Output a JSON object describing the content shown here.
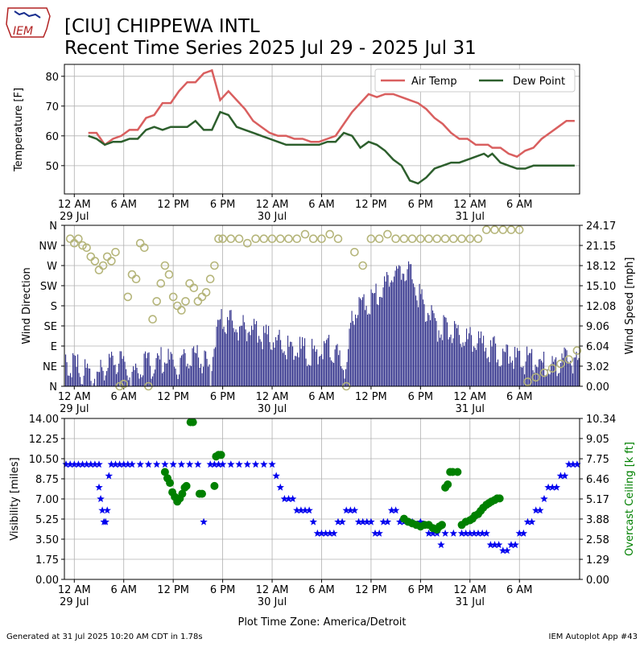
{
  "header": {
    "title_line1": "[CIU] CHIPPEWA INTL",
    "title_line2": "Recent Time Series 2025 Jul 29 - 2025 Jul 31",
    "logo_text": "IEM"
  },
  "footer": {
    "generated": "Generated at 31 Jul 2025 10:20 AM CDT in 1.78s",
    "app": "IEM Autoplot App #43",
    "timezone_label": "Plot Time Zone: America/Detroit"
  },
  "x_axis": {
    "ticks": [
      "12 AM",
      "6 AM",
      "12 PM",
      "6 PM",
      "12 AM",
      "6 AM",
      "12 PM",
      "6 PM",
      "12 AM",
      "6 AM"
    ],
    "tick_hours": [
      0,
      6,
      12,
      18,
      24,
      30,
      36,
      42,
      48,
      54
    ],
    "date_labels": [
      {
        "text": "29 Jul",
        "hour": 0
      },
      {
        "text": "30 Jul",
        "hour": 24
      },
      {
        "text": "31 Jul",
        "hour": 48
      }
    ],
    "xlim_hours": [
      -1.2,
      61.3
    ]
  },
  "colors": {
    "air_temp": "#d95f5f",
    "dew_point": "#2d5f2d",
    "wind_speed": "#38388f",
    "wind_dir": "#b5b57a",
    "visibility": "#0000ee",
    "ceiling": "#008000",
    "grid": "#b0b0b0"
  },
  "chart_data": [
    {
      "type": "line",
      "ylabel": "Temperature [F]",
      "ylim": [
        40.5,
        84
      ],
      "yticks": [
        50,
        60,
        70,
        80
      ],
      "grid": true,
      "legend": "top-right",
      "series": [
        {
          "name": "Air Temp",
          "x": [
            1.7,
            2.7,
            3.7,
            4.7,
            5.7,
            6.7,
            7.7,
            8.7,
            9.7,
            10.7,
            11.7,
            12.7,
            13.7,
            14.7,
            15.7,
            16.7,
            17.7,
            18.7,
            19.7,
            20.7,
            21.7,
            22.7,
            23.7,
            24.7,
            25.7,
            26.7,
            27.7,
            28.7,
            29.7,
            30.7,
            31.7,
            32.7,
            33.7,
            34.7,
            35.7,
            36.7,
            37.7,
            38.7,
            39.7,
            40.7,
            41.7,
            42.7,
            43.7,
            44.7,
            45.7,
            46.7,
            47.7,
            48.7,
            49.7,
            50.2,
            50.7,
            51.7,
            52.7,
            53.7,
            54.7,
            55.7,
            56.7,
            57.7,
            58.7,
            59.7,
            60.7
          ],
          "y": [
            61,
            61,
            57,
            59,
            60,
            62,
            62,
            66,
            67,
            71,
            71,
            75,
            78,
            78,
            81,
            82,
            72,
            75,
            72,
            69,
            65,
            63,
            61,
            60,
            60,
            59,
            59,
            58,
            58,
            59,
            60,
            64,
            68,
            71,
            74,
            73,
            74,
            74,
            73,
            72,
            71,
            69,
            66,
            64,
            61,
            59,
            59,
            57,
            57,
            57,
            56,
            56,
            54,
            53,
            55,
            56,
            59,
            61,
            63,
            65,
            65
          ],
          "color": "#d95f5f"
        },
        {
          "name": "Dew Point",
          "x": [
            1.7,
            2.7,
            3.7,
            4.7,
            5.7,
            6.7,
            7.7,
            8.7,
            9.7,
            10.7,
            11.7,
            12.7,
            13.7,
            14.7,
            15.7,
            16.7,
            17.7,
            18.7,
            19.7,
            20.7,
            21.7,
            22.7,
            23.7,
            24.7,
            25.7,
            26.7,
            27.7,
            28.7,
            29.7,
            30.7,
            31.7,
            32.7,
            33.7,
            34.7,
            35.7,
            36.7,
            37.7,
            38.7,
            39.7,
            40.7,
            41.7,
            42.7,
            43.7,
            44.7,
            45.7,
            46.7,
            47.7,
            48.7,
            49.7,
            50.2,
            50.7,
            51.7,
            52.7,
            53.7,
            54.7,
            55.7,
            56.7,
            57.7,
            58.7,
            59.7,
            60.7
          ],
          "y": [
            60,
            59,
            57,
            58,
            58,
            59,
            59,
            62,
            63,
            62,
            63,
            63,
            63,
            65,
            62,
            62,
            68,
            67,
            63,
            62,
            61,
            60,
            59,
            58,
            57,
            57,
            57,
            57,
            57,
            58,
            58,
            61,
            60,
            56,
            58,
            57,
            55,
            52,
            50,
            45,
            44,
            46,
            49,
            50,
            51,
            51,
            52,
            53,
            54,
            53,
            54,
            51,
            50,
            49,
            49,
            50,
            50,
            50,
            50,
            50,
            50
          ],
          "color": "#2d5f2d"
        }
      ]
    },
    {
      "type": "bar",
      "ylabel": "Wind Direction",
      "y2label": "Wind Speed [mph]",
      "direction_ticks": [
        "N",
        "NE",
        "E",
        "SE",
        "S",
        "SW",
        "W",
        "NW",
        "N"
      ],
      "direction_values": [
        0,
        45,
        90,
        135,
        180,
        225,
        270,
        315,
        360
      ],
      "speed_ticks": [
        "0.00",
        "3.02",
        "6.04",
        "9.06",
        "12.08",
        "15.10",
        "18.12",
        "21.15",
        "24.17"
      ],
      "speed_ylim": [
        0,
        24.17
      ],
      "grid": true,
      "speed_segments": [
        {
          "x": [
            -1.2,
            1.5,
            2.0,
            4.0,
            5.0,
            7.0,
            8.0,
            11.0,
            12.0,
            13.5,
            15.0,
            16.5,
            17.2,
            18.0,
            20.0,
            22.0,
            24.0,
            26.0,
            29.0,
            31.0,
            32.0,
            33.0,
            33.5,
            34.0,
            35.0,
            36.0,
            37.0,
            38.0,
            39.0,
            40.0,
            41.0,
            42.0,
            43.0,
            44.0,
            46.0,
            48.0,
            50.0,
            52.0,
            54.0,
            56.0,
            58.0,
            59.5,
            61.3
          ],
          "y": [
            5,
            3,
            2,
            4,
            5,
            3,
            4,
            5,
            4,
            5,
            6,
            3,
            10,
            11,
            10,
            9,
            8,
            7,
            6,
            7,
            5,
            4,
            11,
            12,
            13,
            14,
            15,
            17,
            18,
            19,
            17,
            14,
            12,
            10,
            9,
            8,
            7,
            6,
            5,
            5,
            4,
            5,
            5
          ]
        }
      ],
      "direction_points": [
        {
          "x": [
            -0.5,
            0.0,
            0.5,
            1.0,
            1.5,
            2.0,
            2.5,
            3.0,
            3.5,
            4.0,
            4.5,
            5.0,
            5.5,
            6.0,
            6.5,
            7.0,
            7.5,
            8.0,
            8.5,
            9.0,
            9.5,
            10.0,
            10.5,
            11.0,
            11.5,
            12.0,
            12.5,
            13.0,
            13.5,
            14.0,
            14.5,
            15.0,
            15.5,
            16.0,
            16.5,
            17.0,
            17.5,
            18.0,
            19.0,
            20.0,
            21.0,
            22.0,
            23.0,
            24.0,
            25.0,
            26.0,
            27.0,
            28.0,
            29.0,
            30.0,
            31.0,
            32.0,
            33.0,
            34.0,
            35.0,
            36.0,
            37.0,
            38.0,
            39.0,
            40.0,
            41.0,
            42.0,
            43.0,
            44.0,
            45.0,
            46.0,
            47.0,
            48.0,
            49.0,
            50.0,
            51.0,
            52.0,
            53.0,
            54.0,
            55.0,
            56.0,
            57.0,
            58.0,
            59.0,
            60.0,
            61.0
          ],
          "y": [
            330,
            320,
            330,
            315,
            310,
            290,
            280,
            260,
            270,
            290,
            280,
            300,
            0,
            5,
            200,
            250,
            240,
            320,
            310,
            0,
            150,
            190,
            230,
            270,
            250,
            200,
            180,
            170,
            190,
            230,
            220,
            190,
            200,
            210,
            240,
            270,
            330,
            330,
            330,
            330,
            320,
            330,
            330,
            330,
            330,
            330,
            330,
            340,
            330,
            330,
            340,
            330,
            0,
            300,
            270,
            330,
            330,
            340,
            330,
            330,
            330,
            330,
            330,
            330,
            330,
            330,
            330,
            330,
            330,
            350,
            350,
            350,
            350,
            350,
            10,
            20,
            30,
            40,
            50,
            60,
            80
          ]
        }
      ]
    },
    {
      "type": "scatter",
      "ylabel": "Visibility [miles]",
      "y2label": "Overcast Ceiling [k ft]",
      "vis_ticks": [
        "0.00",
        "1.75",
        "3.50",
        "5.25",
        "7.00",
        "8.75",
        "10.50",
        "12.25",
        "14.00"
      ],
      "vis_ylim": [
        0,
        14
      ],
      "ceiling_ticks": [
        "0.00",
        "1.29",
        "2.58",
        "3.88",
        "5.17",
        "6.46",
        "7.75",
        "9.05",
        "10.34"
      ],
      "ceiling_ylim": [
        0,
        10.34
      ],
      "grid": true,
      "series": [
        {
          "name": "Visibility",
          "marker": "star",
          "color": "#0000ee",
          "x": [
            -1.0,
            -0.5,
            0.0,
            0.5,
            1.0,
            1.5,
            2.0,
            2.5,
            3.0,
            3.0,
            3.2,
            3.4,
            3.6,
            3.8,
            4.0,
            4.2,
            4.5,
            5.0,
            5.5,
            6.0,
            6.5,
            7.0,
            8.0,
            9.0,
            10.0,
            11.0,
            12.0,
            13.0,
            14.0,
            15.0,
            15.7,
            16.5,
            17.0,
            17.5,
            18.0,
            19.0,
            20.0,
            21.0,
            22.0,
            23.0,
            24.0,
            24.5,
            25.0,
            25.5,
            26.0,
            26.5,
            27.0,
            27.5,
            28.0,
            28.5,
            29.0,
            29.5,
            30.0,
            30.5,
            31.0,
            31.5,
            32.0,
            32.5,
            33.0,
            33.5,
            34.0,
            34.5,
            35.0,
            35.5,
            36.0,
            36.5,
            37.0,
            37.5,
            38.0,
            38.5,
            39.0,
            39.5,
            40.0,
            40.5,
            41.0,
            42.0,
            43.0,
            43.5,
            44.0,
            44.5,
            45.0,
            46.0,
            47.0,
            47.5,
            48.0,
            48.5,
            49.0,
            49.5,
            50.0,
            50.5,
            51.0,
            51.5,
            52.0,
            52.5,
            53.0,
            53.5,
            54.0,
            54.5,
            55.0,
            55.5,
            56.0,
            56.5,
            57.0,
            57.5,
            58.0,
            58.5,
            59.0,
            59.5,
            60.0,
            60.5,
            61.0
          ],
          "y": [
            10,
            10,
            10,
            10,
            10,
            10,
            10,
            10,
            10,
            8,
            7,
            6,
            5,
            5,
            6,
            9,
            10,
            10,
            10,
            10,
            10,
            10,
            10,
            10,
            10,
            10,
            10,
            10,
            10,
            10,
            5,
            10,
            10,
            10,
            10,
            10,
            10,
            10,
            10,
            10,
            10,
            9,
            8,
            7,
            7,
            7,
            6,
            6,
            6,
            6,
            5,
            4,
            4,
            4,
            4,
            4,
            5,
            5,
            6,
            6,
            6,
            5,
            5,
            5,
            5,
            4,
            4,
            5,
            5,
            6,
            6,
            5,
            5,
            5,
            5,
            5,
            4,
            4,
            4,
            3,
            4,
            4,
            4,
            4,
            4,
            4,
            4,
            4,
            4,
            3,
            3,
            3,
            2.5,
            2.5,
            3,
            3,
            4,
            4,
            5,
            5,
            6,
            6,
            7,
            8,
            8,
            8,
            9,
            9,
            10,
            10,
            10
          ]
        },
        {
          "name": "Overcast Ceiling",
          "marker": "circle",
          "color": "#008000",
          "axis": "right",
          "x": [
            11.0,
            11.3,
            11.6,
            11.9,
            12.2,
            12.5,
            12.8,
            13.1,
            13.4,
            13.6,
            14.1,
            14.4,
            15.2,
            15.5,
            17.0,
            17.2,
            17.5,
            17.8,
            40.0,
            40.5,
            41.0,
            41.5,
            42.0,
            42.5,
            43.0,
            43.5,
            44.0,
            44.3,
            44.6,
            45.0,
            45.3,
            45.6,
            45.9,
            46.5,
            47.0,
            47.5,
            48.0,
            48.3,
            48.6,
            49.0,
            49.3,
            49.6,
            50.0,
            50.3,
            50.6,
            51.0,
            51.3,
            51.6
          ],
          "y": [
            6.9,
            6.5,
            6.2,
            5.6,
            5.3,
            5.0,
            5.2,
            5.5,
            5.9,
            6.0,
            10.1,
            10.1,
            5.5,
            5.5,
            6.0,
            7.9,
            8.0,
            8.0,
            3.9,
            3.7,
            3.6,
            3.5,
            3.4,
            3.5,
            3.5,
            3.3,
            3.2,
            3.4,
            3.5,
            5.9,
            6.1,
            6.9,
            6.9,
            6.9,
            3.5,
            3.7,
            3.8,
            3.9,
            4.1,
            4.2,
            4.4,
            4.6,
            4.8,
            4.9,
            5.0,
            5.1,
            5.2,
            5.2
          ]
        }
      ]
    }
  ]
}
